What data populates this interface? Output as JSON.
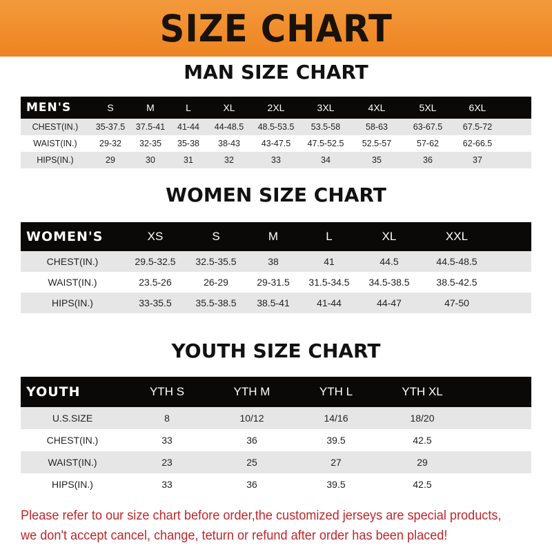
{
  "banner": "SIZE CHART",
  "men": {
    "title": "MAN SIZE CHART",
    "header": [
      "MEN'S",
      "S",
      "M",
      "L",
      "XL",
      "2XL",
      "3XL",
      "4XL",
      "5XL",
      "6XL"
    ],
    "rows": [
      [
        "CHEST(IN.)",
        "35-37.5",
        "37.5-41",
        "41-44",
        "44-48.5",
        "48.5-53.5",
        "53.5-58",
        "58-63",
        "63-67.5",
        "67.5-72"
      ],
      [
        "WAIST(IN.)",
        "29-32",
        "32-35",
        "35-38",
        "38-43",
        "43-47.5",
        "47.5-52.5",
        "52.5-57",
        "57-62",
        "62-66.5"
      ],
      [
        "HIPS(IN.)",
        "29",
        "30",
        "31",
        "32",
        "33",
        "34",
        "35",
        "36",
        "37"
      ]
    ]
  },
  "women": {
    "title": "WOMEN SIZE CHART",
    "header": [
      "WOMEN'S",
      "XS",
      "S",
      "M",
      "L",
      "XL",
      "XXL"
    ],
    "rows": [
      [
        "CHEST(IN.)",
        "29.5-32.5",
        "32.5-35.5",
        "38",
        "41",
        "44.5",
        "44.5-48.5"
      ],
      [
        "WAIST(IN.)",
        "23.5-26",
        "26-29",
        "29-31.5",
        "31.5-34.5",
        "34.5-38.5",
        "38.5-42.5"
      ],
      [
        "HIPS(IN.)",
        "33-35.5",
        "35.5-38.5",
        "38.5-41",
        "41-44",
        "44-47",
        "47-50"
      ]
    ]
  },
  "youth": {
    "title": "YOUTH SIZE CHART",
    "header": [
      "YOUTH",
      "YTH S",
      "YTH M",
      "YTH L",
      "YTH XL"
    ],
    "rows": [
      [
        "U.S.SIZE",
        "8",
        "10/12",
        "14/16",
        "18/20"
      ],
      [
        "CHEST(IN.)",
        "33",
        "36",
        "39.5",
        "42.5"
      ],
      [
        "WAIST(IN.)",
        "23",
        "25",
        "27",
        "29"
      ],
      [
        "HIPS(IN.)",
        "33",
        "36",
        "39.5",
        "42.5"
      ]
    ]
  },
  "note": {
    "line1": "Please refer to our size chart before order,the customized jerseys are special products,",
    "line2": "we don't accept cancel, change, teturn or refund after order has been placed!"
  },
  "colors": {
    "banner": "#ee8320",
    "header_row": "#0b0808",
    "stripe": "#e6e6e6",
    "note": "#c0262a"
  }
}
